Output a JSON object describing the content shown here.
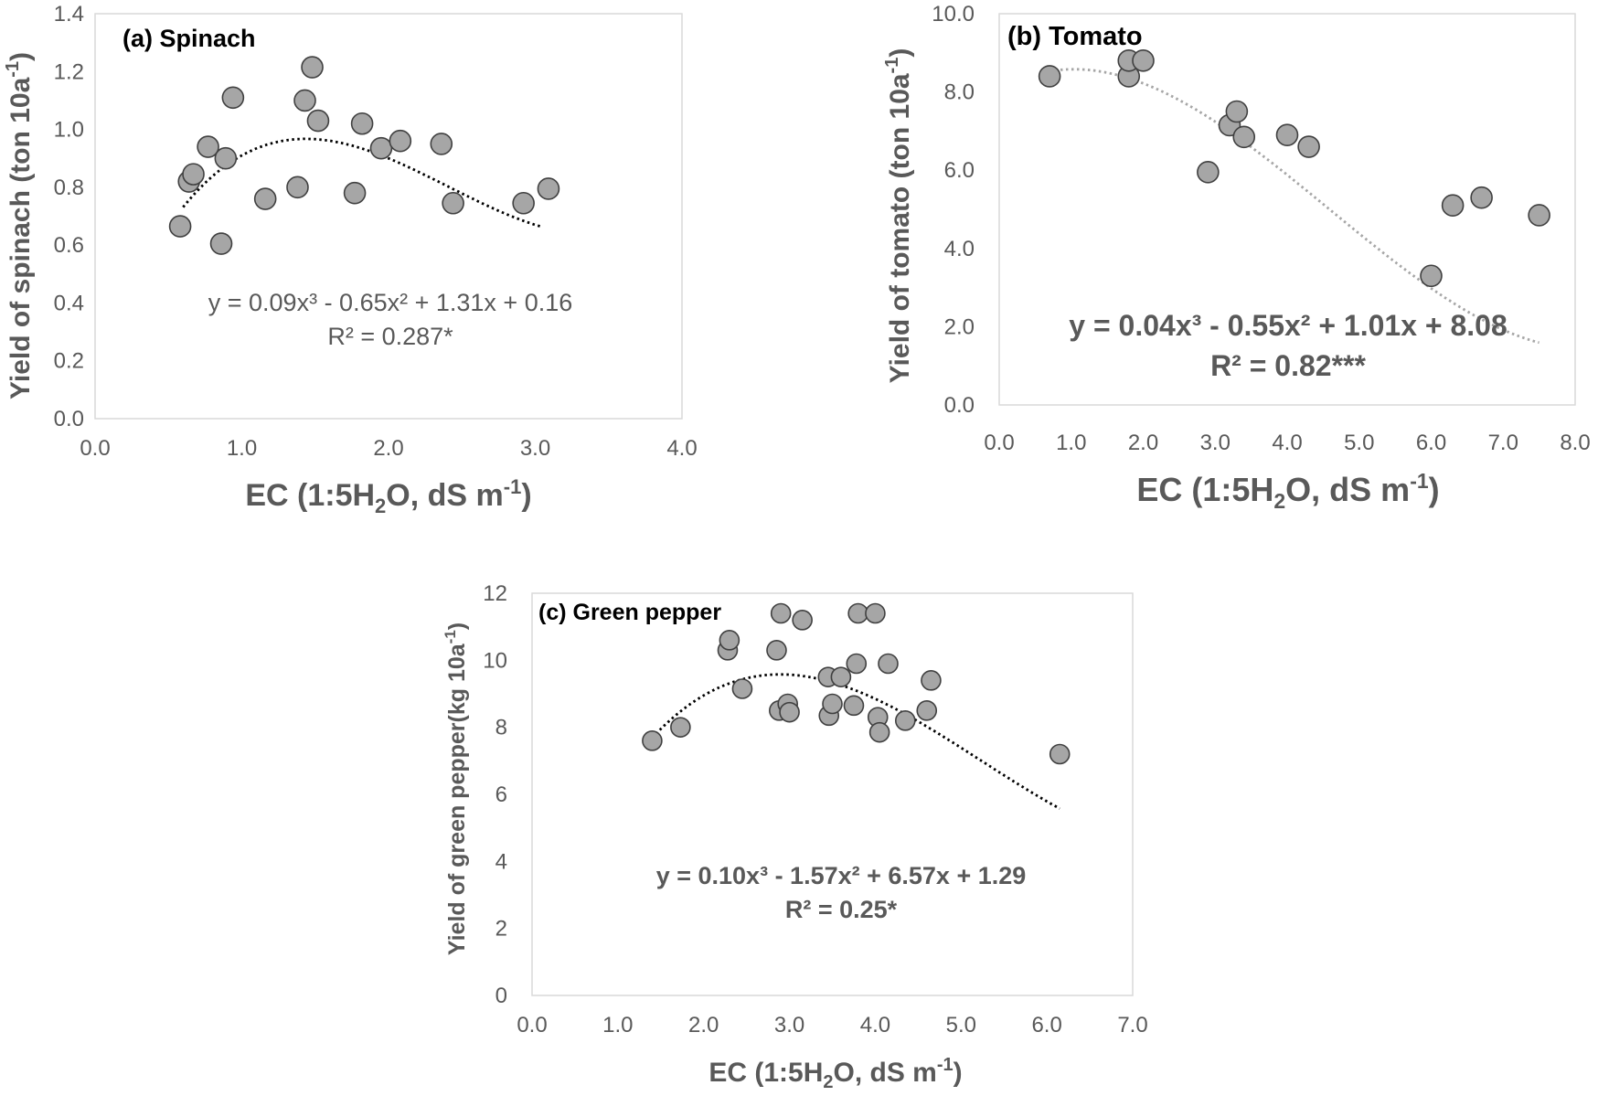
{
  "chart_data": [
    {
      "id": "spinach",
      "type": "scatter",
      "title": "(a)  Spinach",
      "xlabel": "EC (1:5H",
      "xlabel_sub": "2",
      "xlabel_end": "O, dS m",
      "xlabel_sup": "-1",
      "xlabel_close": ")",
      "ylabel": "Yield of spinach (ton 10a",
      "ylabel_sup": "-1",
      "ylabel_close": ")",
      "xlim": [
        0,
        4
      ],
      "ylim": [
        0,
        1.4
      ],
      "xticks": [
        "0.0",
        "1.0",
        "2.0",
        "3.0",
        "4.0"
      ],
      "yticks": [
        "0.0",
        "0.2",
        "0.4",
        "0.6",
        "0.8",
        "1.0",
        "1.2",
        "1.4"
      ],
      "points": [
        [
          0.58,
          0.665
        ],
        [
          0.64,
          0.82
        ],
        [
          0.67,
          0.845
        ],
        [
          0.77,
          0.94
        ],
        [
          0.86,
          0.605
        ],
        [
          0.89,
          0.9
        ],
        [
          0.94,
          1.11
        ],
        [
          1.16,
          0.76
        ],
        [
          1.38,
          0.8
        ],
        [
          1.43,
          1.1
        ],
        [
          1.48,
          1.215
        ],
        [
          1.52,
          1.03
        ],
        [
          1.77,
          0.78
        ],
        [
          1.82,
          1.02
        ],
        [
          1.95,
          0.935
        ],
        [
          2.08,
          0.96
        ],
        [
          2.36,
          0.95
        ],
        [
          2.44,
          0.745
        ],
        [
          2.92,
          0.745
        ],
        [
          3.09,
          0.795
        ]
      ],
      "trendline": {
        "coeffs": [
          0.16,
          1.31,
          -0.65,
          0.09
        ],
        "xrange": [
          0.6,
          3.05
        ],
        "color": "#000000"
      },
      "equation": "y = 0.09x³ - 0.65x² + 1.31x + 0.16",
      "r2": "R² = 0.287*"
    },
    {
      "id": "tomato",
      "type": "scatter",
      "title": "(b)  Tomato",
      "xlabel": "EC (1:5H",
      "xlabel_sub": "2",
      "xlabel_end": "O, dS m",
      "xlabel_sup": "-1",
      "xlabel_close": ")",
      "ylabel": "Yield of tomato (ton 10a",
      "ylabel_sup": "-1",
      "ylabel_close": ")",
      "xlim": [
        0,
        8
      ],
      "ylim": [
        0,
        10
      ],
      "xticks": [
        "0.0",
        "1.0",
        "2.0",
        "3.0",
        "4.0",
        "5.0",
        "6.0",
        "7.0",
        "8.0"
      ],
      "yticks": [
        "0.0",
        "2.0",
        "4.0",
        "6.0",
        "8.0",
        "10.0"
      ],
      "points": [
        [
          0.7,
          8.4
        ],
        [
          1.8,
          8.4
        ],
        [
          1.8,
          8.8
        ],
        [
          2.0,
          8.8
        ],
        [
          2.9,
          5.95
        ],
        [
          3.2,
          7.15
        ],
        [
          3.3,
          7.5
        ],
        [
          3.4,
          6.85
        ],
        [
          4.0,
          6.9
        ],
        [
          4.3,
          6.6
        ],
        [
          6.0,
          3.3
        ],
        [
          6.3,
          5.1
        ],
        [
          6.7,
          5.3
        ],
        [
          7.5,
          4.85
        ]
      ],
      "trendline": {
        "coeffs": [
          8.08,
          1.01,
          -0.55,
          0.04
        ],
        "xrange": [
          0.7,
          7.5
        ],
        "color": "#a6a6a6"
      },
      "equation": "y = 0.04x³ - 0.55x² + 1.01x + 8.08",
      "r2": "R² = 0.82***"
    },
    {
      "id": "green_pepper",
      "type": "scatter",
      "title": "(c)  Green pepper",
      "xlabel": "EC (1:5H",
      "xlabel_sub": "2",
      "xlabel_end": "O, dS m",
      "xlabel_sup": "-1",
      "xlabel_close": ")",
      "ylabel": "Yield of green pepper(kg 10a",
      "ylabel_sup": "-1",
      "ylabel_close": ")",
      "xlim": [
        0,
        7
      ],
      "ylim": [
        0,
        12
      ],
      "xticks": [
        "0.0",
        "1.0",
        "2.0",
        "3.0",
        "4.0",
        "5.0",
        "6.0",
        "7.0"
      ],
      "yticks": [
        "0",
        "2",
        "4",
        "6",
        "8",
        "10",
        "12"
      ],
      "points": [
        [
          1.4,
          7.6
        ],
        [
          1.73,
          8.0
        ],
        [
          2.28,
          10.3
        ],
        [
          2.3,
          10.6
        ],
        [
          2.45,
          9.15
        ],
        [
          2.85,
          10.3
        ],
        [
          2.88,
          8.5
        ],
        [
          2.9,
          11.4
        ],
        [
          2.98,
          8.7
        ],
        [
          3.0,
          8.45
        ],
        [
          3.15,
          11.2
        ],
        [
          3.45,
          9.5
        ],
        [
          3.46,
          8.35
        ],
        [
          3.5,
          8.7
        ],
        [
          3.6,
          9.5
        ],
        [
          3.75,
          8.65
        ],
        [
          3.78,
          9.9
        ],
        [
          3.8,
          11.4
        ],
        [
          4.0,
          11.4
        ],
        [
          4.03,
          8.3
        ],
        [
          4.05,
          7.85
        ],
        [
          4.15,
          9.9
        ],
        [
          4.35,
          8.2
        ],
        [
          4.6,
          8.5
        ],
        [
          4.65,
          9.4
        ],
        [
          6.15,
          7.2
        ]
      ],
      "trendline": {
        "coeffs": [
          1.29,
          6.57,
          -1.57,
          0.1
        ],
        "xrange": [
          1.4,
          6.15
        ],
        "color": "#000000"
      },
      "equation": "y = 0.10x³ - 1.57x² + 6.57x + 1.29",
      "r2": "R² = 0.25*"
    }
  ]
}
